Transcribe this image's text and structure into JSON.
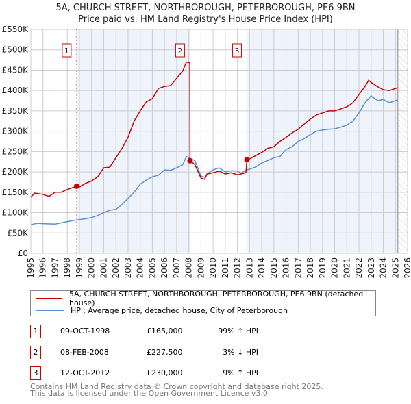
{
  "title_line1": "5A, CHURCH STREET, NORTHBOROUGH, PETERBOROUGH, PE6 9BN",
  "title_line2": "Price paid vs. HM Land Registry's House Price Index (HPI)",
  "chart_data": {
    "type": "line",
    "xlim": [
      1995,
      2026
    ],
    "ylim": [
      0,
      550000
    ],
    "y_ticks": [
      0,
      50000,
      100000,
      150000,
      200000,
      250000,
      300000,
      350000,
      400000,
      450000,
      500000,
      550000
    ],
    "y_tick_labels": [
      "£0",
      "£50K",
      "£100K",
      "£150K",
      "£200K",
      "£250K",
      "£300K",
      "£350K",
      "£400K",
      "£450K",
      "£500K",
      "£550K"
    ],
    "x_tick_labels": [
      "1995",
      "1996",
      "1997",
      "1998",
      "1999",
      "2000",
      "2001",
      "2002",
      "2003",
      "2004",
      "2005",
      "2006",
      "2007",
      "2008",
      "2009",
      "2010",
      "2011",
      "2012",
      "2013",
      "2014",
      "2015",
      "2016",
      "2017",
      "2018",
      "2019",
      "2020",
      "2021",
      "2022",
      "2023",
      "2024",
      "2025",
      "2026"
    ],
    "grid": true,
    "colors": {
      "property": "#cc0000",
      "hpi": "#5b8fd4",
      "shade": "#eef3fc"
    },
    "series": [
      {
        "name": "5A, CHURCH STREET, NORTHBOROUGH, PETERBOROUGH, PE6 9BN (detached house)",
        "x": [
          1995,
          1995.3,
          1996,
          1996.5,
          1997,
          1997.5,
          1998,
          1998.77,
          1999,
          1999.5,
          2000,
          2000.5,
          2001,
          2001.5,
          2002,
          2002.5,
          2003,
          2003.5,
          2004,
          2004.5,
          2005,
          2005.5,
          2006,
          2006.5,
          2007,
          2007.5,
          2007.8,
          2008.08,
          2008.1,
          2008.5,
          2009,
          2009.3,
          2009.5,
          2010,
          2010.5,
          2011,
          2011.5,
          2012,
          2012.7,
          2012.78,
          2013,
          2013.5,
          2014,
          2014.5,
          2015,
          2015.5,
          2016,
          2016.5,
          2017,
          2017.5,
          2018,
          2018.5,
          2019,
          2019.5,
          2020,
          2020.5,
          2021,
          2021.5,
          2022,
          2022.5,
          2022.8,
          2023,
          2023.5,
          2024,
          2024.5,
          2025,
          2025.2
        ],
        "values": [
          138000,
          148000,
          145000,
          140000,
          150000,
          150000,
          157000,
          165000,
          163000,
          172000,
          178000,
          188000,
          210000,
          212000,
          235000,
          258000,
          285000,
          325000,
          350000,
          372000,
          380000,
          405000,
          410000,
          412000,
          430000,
          448000,
          470000,
          468000,
          227500,
          218000,
          185000,
          182000,
          195000,
          198000,
          202000,
          195000,
          198000,
          193000,
          198000,
          230000,
          232000,
          240000,
          248000,
          258000,
          262000,
          275000,
          285000,
          296000,
          305000,
          318000,
          330000,
          340000,
          345000,
          350000,
          350000,
          355000,
          360000,
          370000,
          390000,
          410000,
          425000,
          420000,
          410000,
          402000,
          400000,
          405000,
          407000
        ]
      },
      {
        "name": "HPI: Average price, detached house, City of Peterborough",
        "x": [
          1995,
          1995.5,
          1996,
          1997,
          1998,
          1998.77,
          1999.5,
          2000,
          2000.5,
          2001,
          2001.5,
          2002,
          2002.5,
          2003,
          2003.5,
          2004,
          2004.5,
          2005,
          2005.5,
          2006,
          2006.5,
          2007,
          2007.5,
          2007.8,
          2008.1,
          2008.5,
          2009,
          2009.3,
          2009.5,
          2010,
          2010.5,
          2011,
          2011.5,
          2012,
          2012.3,
          2012.78,
          2013,
          2013.5,
          2014,
          2014.5,
          2015,
          2015.5,
          2016,
          2016.5,
          2017,
          2017.5,
          2018,
          2018.5,
          2019,
          2019.5,
          2020,
          2020.5,
          2021,
          2021.5,
          2022,
          2022.5,
          2023,
          2023.3,
          2023.6,
          2024,
          2024.5,
          2025,
          2025.2
        ],
        "values": [
          70000,
          74000,
          73000,
          72000,
          78000,
          82000,
          85000,
          88000,
          93000,
          100000,
          106000,
          108000,
          120000,
          135000,
          150000,
          170000,
          180000,
          188000,
          192000,
          205000,
          204000,
          210000,
          218000,
          238000,
          233000,
          228000,
          190000,
          187000,
          195000,
          205000,
          210000,
          200000,
          203000,
          202000,
          197000,
          205000,
          207000,
          212000,
          222000,
          228000,
          235000,
          238000,
          255000,
          262000,
          275000,
          282000,
          292000,
          300000,
          303000,
          305000,
          306000,
          310000,
          315000,
          325000,
          345000,
          370000,
          387000,
          380000,
          375000,
          378000,
          370000,
          375000,
          377000
        ]
      }
    ],
    "sales": [
      {
        "label": "1",
        "x": 1998.77,
        "value": 165000
      },
      {
        "label": "2",
        "x": 2008.1,
        "value": 227500
      },
      {
        "label": "3",
        "x": 2012.78,
        "value": 230000
      }
    ],
    "shaded_ranges": [
      [
        1998.77,
        2008.1
      ],
      [
        2012.78,
        2025.2
      ]
    ],
    "forecast_from": 2025.2
  },
  "legend": {
    "property": "5A, CHURCH STREET, NORTHBOROUGH, PETERBOROUGH, PE6 9BN (detached house)",
    "hpi": "HPI: Average price, detached house, City of Peterborough"
  },
  "transactions": [
    {
      "num": "1",
      "date": "09-OCT-1998",
      "price": "£165,000",
      "hpi": "99% ↑ HPI"
    },
    {
      "num": "2",
      "date": "08-FEB-2008",
      "price": "£227,500",
      "hpi": "3% ↓ HPI"
    },
    {
      "num": "3",
      "date": "12-OCT-2012",
      "price": "£230,000",
      "hpi": "9% ↑ HPI"
    }
  ],
  "footer": {
    "line1": "Contains HM Land Registry data © Crown copyright and database right 2025.",
    "line2": "This data is licensed under the Open Government Licence v3.0."
  }
}
